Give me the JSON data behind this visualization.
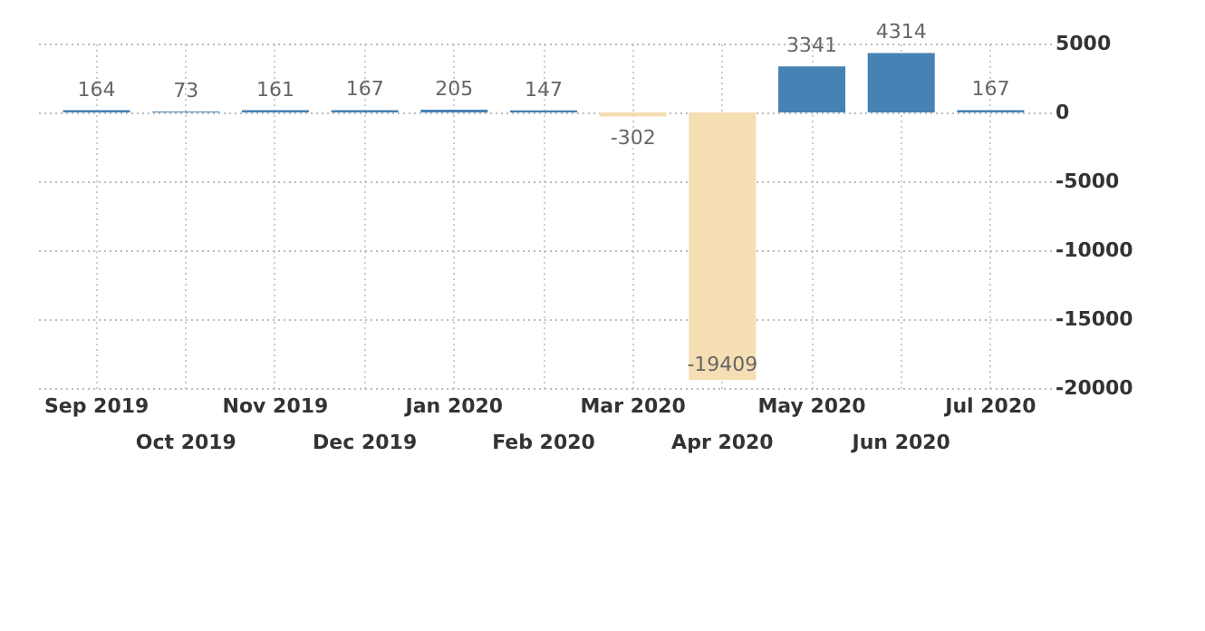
{
  "chart_data": {
    "type": "bar",
    "categories": [
      "Sep 2019",
      "Oct 2019",
      "Nov 2019",
      "Dec 2019",
      "Jan 2020",
      "Feb 2020",
      "Mar 2020",
      "Apr 2020",
      "May 2020",
      "Jun 2020",
      "Jul 2020"
    ],
    "values": [
      164,
      73,
      161,
      167,
      205,
      147,
      -302,
      -19409,
      3341,
      4314,
      167
    ],
    "colors": [
      "#4682b4",
      "#4682b4",
      "#4682b4",
      "#4682b4",
      "#4682b4",
      "#4682b4",
      "#f5deb3",
      "#f5deb3",
      "#4682b4",
      "#4682b4",
      "#4682b4"
    ],
    "ylim": [
      -20000,
      5000
    ],
    "yticks": [
      -20000,
      -15000,
      -10000,
      -5000,
      0,
      5000
    ],
    "grid": true,
    "data_labels": true
  }
}
